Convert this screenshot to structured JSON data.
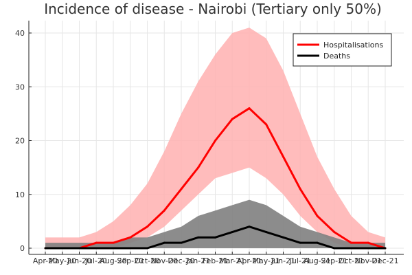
{
  "chart_data": {
    "type": "line",
    "title": "Incidence of disease - Nairobi (Tertiary only 50%)",
    "xlabel": "",
    "ylabel": "",
    "ylim": [
      0,
      40
    ],
    "yticks": [
      0,
      10,
      20,
      30,
      40
    ],
    "x_tick_labels": [
      "Apr-20",
      "May-20",
      "Jun-20",
      "Jul-20",
      "Aug-20",
      "Sep-20",
      "Oct-20",
      "Nov-20",
      "Dec-20",
      "Jan-21",
      "Feb-21",
      "Mar-21",
      "Apr-21",
      "May-21",
      "Jun-21",
      "Jul-21",
      "Aug-21",
      "Sep-21",
      "Oct-21",
      "Nov-21",
      "Dec-21"
    ],
    "grid": true,
    "legend_position": "top-right",
    "series": [
      {
        "name": "Hospitalisations",
        "color": "#ff0000",
        "band_color": "#ffb0b0",
        "x": [
          "Apr-20",
          "May-20",
          "Jun-20",
          "Jul-20",
          "Aug-20",
          "Sep-20",
          "Oct-20",
          "Nov-20",
          "Dec-20",
          "Jan-21",
          "Feb-21",
          "Mar-21",
          "Apr-21",
          "May-21",
          "Jun-21",
          "Jul-21",
          "Aug-21",
          "Sep-21",
          "Oct-21",
          "Nov-21",
          "Dec-21"
        ],
        "values": [
          0,
          0,
          0,
          1,
          1,
          2,
          4,
          7,
          11,
          15,
          20,
          24,
          26,
          23,
          17,
          11,
          6,
          3,
          1,
          1,
          0
        ],
        "lower": [
          0,
          0,
          0,
          0,
          0,
          1,
          2,
          4,
          7,
          10,
          13,
          14,
          15,
          13,
          10,
          6,
          3,
          1,
          0,
          0,
          0
        ],
        "upper": [
          2,
          2,
          2,
          3,
          5,
          8,
          12,
          18,
          25,
          31,
          36,
          40,
          41,
          39,
          33,
          25,
          17,
          11,
          6,
          3,
          2
        ]
      },
      {
        "name": "Deaths",
        "color": "#000000",
        "band_color": "#808080",
        "x": [
          "Apr-20",
          "May-20",
          "Jun-20",
          "Jul-20",
          "Aug-20",
          "Sep-20",
          "Oct-20",
          "Nov-20",
          "Dec-20",
          "Jan-21",
          "Feb-21",
          "Mar-21",
          "Apr-21",
          "May-21",
          "Jun-21",
          "Jul-21",
          "Aug-21",
          "Sep-21",
          "Oct-21",
          "Nov-21",
          "Dec-21"
        ],
        "values": [
          0,
          0,
          0,
          0,
          0,
          0,
          0,
          1,
          1,
          2,
          2,
          3,
          4,
          3,
          2,
          1,
          1,
          0,
          0,
          0,
          0
        ],
        "lower": [
          0,
          0,
          0,
          0,
          0,
          0,
          0,
          0,
          0,
          0,
          0,
          0,
          0,
          0,
          0,
          0,
          0,
          0,
          0,
          0,
          0
        ],
        "upper": [
          1,
          1,
          1,
          1,
          1,
          2,
          2,
          3,
          4,
          6,
          7,
          8,
          9,
          8,
          6,
          4,
          3,
          2,
          1,
          1,
          1
        ]
      }
    ]
  }
}
